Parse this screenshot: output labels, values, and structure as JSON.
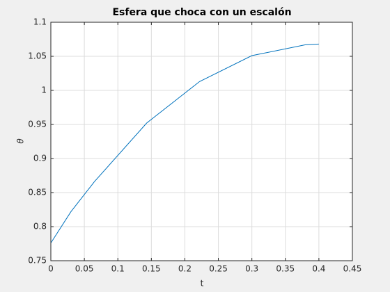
{
  "chart_data": {
    "type": "line",
    "title": "Esfera que choca con un escalón",
    "x_label": "t",
    "y_label": "θ",
    "x": [
      0,
      0.03,
      0.065,
      0.143,
      0.222,
      0.3,
      0.38,
      0.4
    ],
    "series": [
      {
        "color": "#0072bd",
        "values": [
          0.776,
          0.822,
          0.866,
          0.952,
          1.013,
          1.051,
          1.067,
          1.068
        ]
      }
    ],
    "xlim": [
      0,
      0.45
    ],
    "xticks": [
      0,
      0.05,
      0.1,
      0.15,
      0.2,
      0.25,
      0.3,
      0.35,
      0.4,
      0.45
    ],
    "ylim": [
      0.75,
      1.1
    ],
    "yticks": [
      0.75,
      0.8,
      0.85,
      0.9,
      0.95,
      1,
      1.05,
      1.1
    ],
    "grid": true
  }
}
